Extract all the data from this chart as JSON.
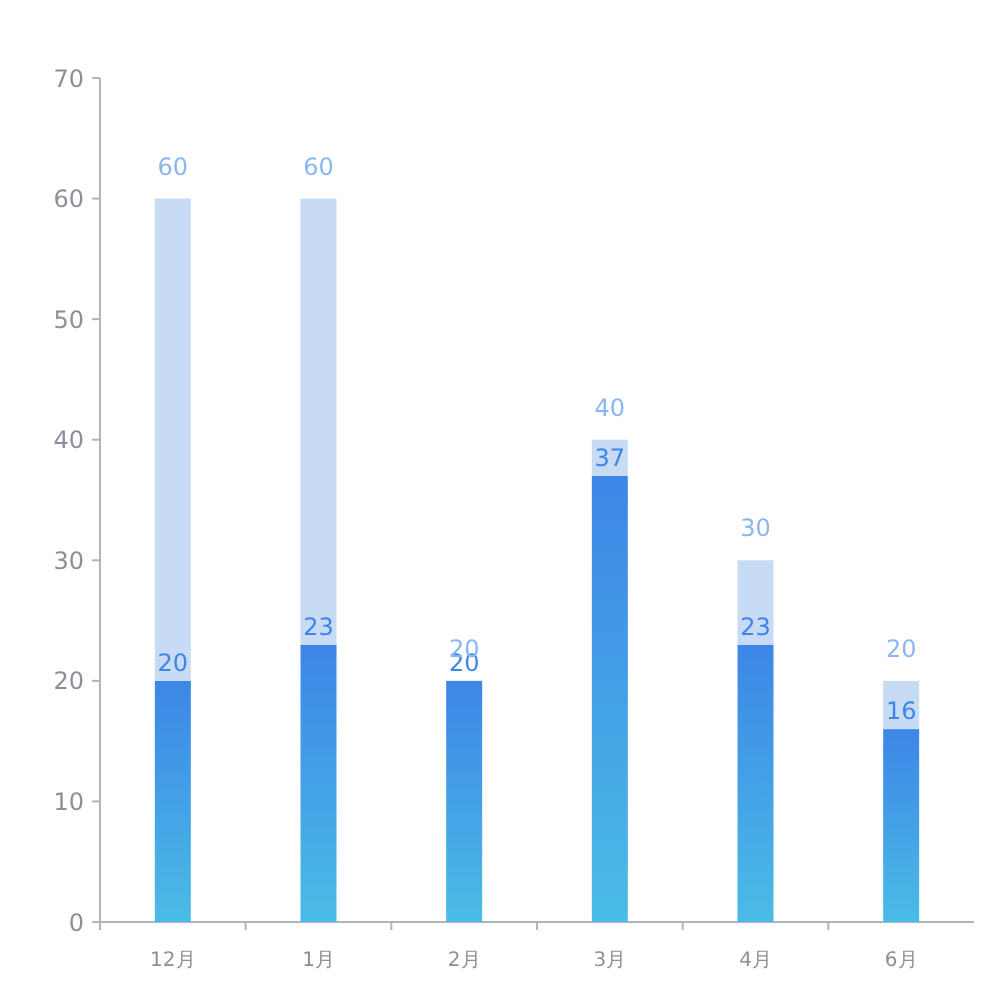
{
  "chart_data": {
    "type": "bar",
    "stacked": true,
    "categories": [
      "12月",
      "1月",
      "2月",
      "3月",
      "4月",
      "6月"
    ],
    "series": [
      {
        "color": "#3d86e6",
        "values": [
          20,
          23,
          20,
          37,
          23,
          16
        ],
        "value_labels": [
          "20",
          "23",
          "20",
          "37",
          "23",
          "16"
        ]
      },
      {
        "color": "#c8dbf5",
        "values": [
          40,
          37,
          0,
          3,
          7,
          4
        ]
      }
    ],
    "totals": [
      "60",
      "60",
      "20",
      "40",
      "30",
      "20"
    ],
    "ylim": [
      0,
      70
    ],
    "yticks": [
      0,
      10,
      20,
      30,
      40,
      50,
      60,
      70
    ],
    "grid": false
  }
}
